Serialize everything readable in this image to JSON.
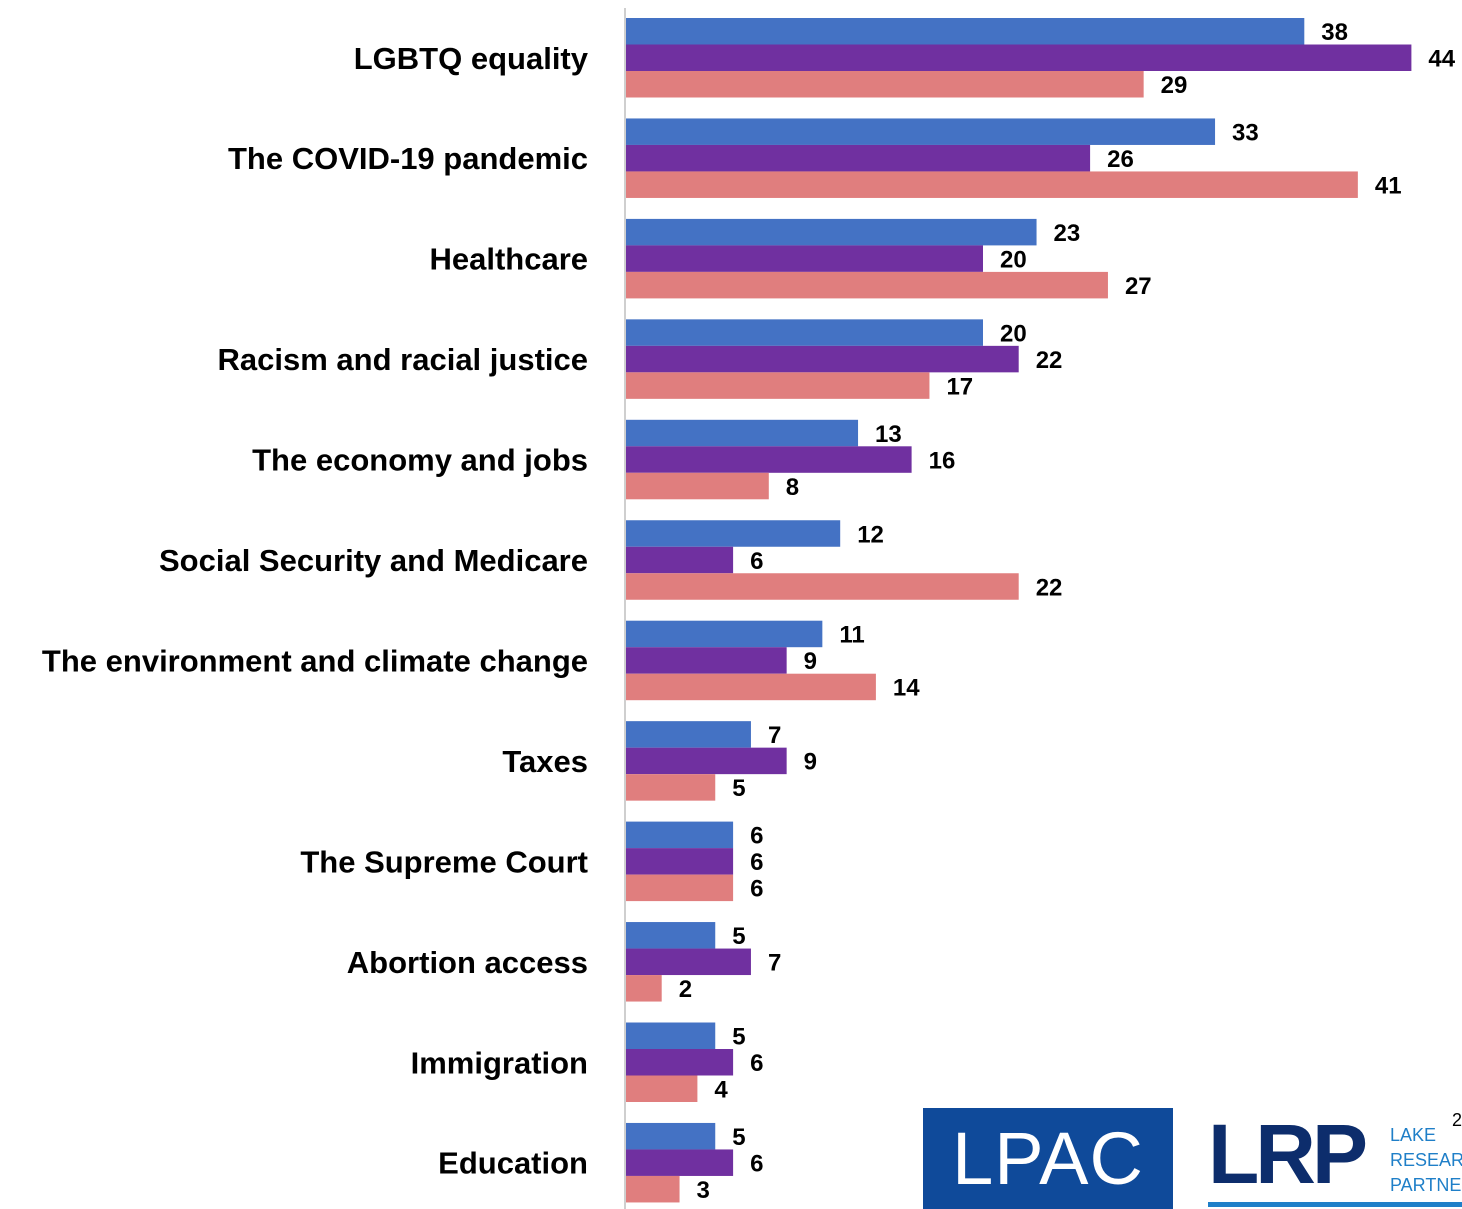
{
  "chart_data": {
    "type": "bar",
    "orientation": "horizontal",
    "categories": [
      "LGBTQ equality",
      "The COVID-19 pandemic",
      "Healthcare",
      "Racism and racial justice",
      "The economy and jobs",
      "Social Security and Medicare",
      "The environment and climate change",
      "Taxes",
      "The Supreme Court",
      "Abortion access",
      "Immigration",
      "Education"
    ],
    "series": [
      {
        "color": "#4472c4",
        "values": [
          38,
          33,
          23,
          20,
          13,
          12,
          11,
          7,
          6,
          5,
          5,
          5
        ]
      },
      {
        "color": "#7030a0",
        "values": [
          44,
          26,
          20,
          22,
          16,
          6,
          9,
          9,
          6,
          7,
          6,
          6
        ]
      },
      {
        "color": "#e07e7e",
        "values": [
          29,
          41,
          27,
          17,
          8,
          22,
          14,
          5,
          6,
          2,
          4,
          3
        ]
      }
    ],
    "xlim": [
      0,
      46
    ],
    "grid": false,
    "legend": "none",
    "data_labels": true
  },
  "logos": {
    "lpac": "LPAC",
    "lrp_mark": "LRP",
    "lrp_text": [
      "LAKE",
      "RESEAR",
      "PARTNE"
    ]
  },
  "page_number": "2"
}
